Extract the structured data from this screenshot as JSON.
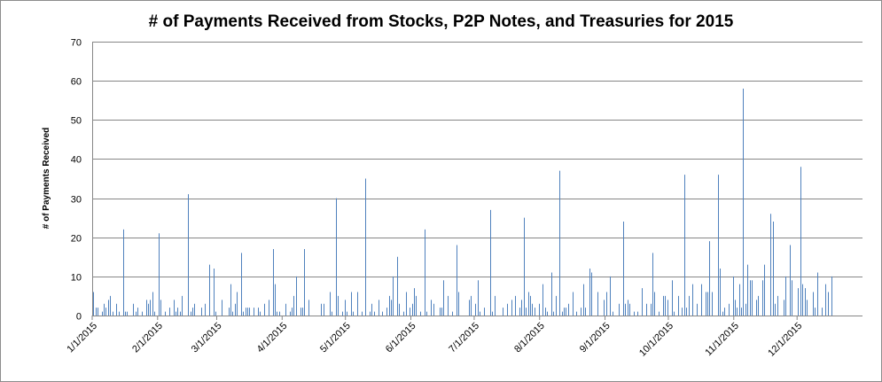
{
  "chart_data": {
    "type": "bar",
    "title": "# of Payments Received from Stocks, P2P Notes, and Treasuries for 2015",
    "xlabel": "",
    "ylabel": "# of Payments Received",
    "ylim": [
      0,
      70
    ],
    "yticks": [
      0,
      10,
      20,
      30,
      40,
      50,
      60,
      70
    ],
    "xlim": [
      "2015-01-01",
      "2015-12-31"
    ],
    "xticks": [
      "1/1/2015",
      "2/1/2015",
      "3/1/2015",
      "4/1/2015",
      "5/1/2015",
      "6/1/2015",
      "7/1/2015",
      "8/1/2015",
      "9/1/2015",
      "10/1/2015",
      "11/1/2015",
      "12/1/2015"
    ],
    "grid": true,
    "bar_color": "#4f81bd",
    "points": [
      [
        "2015-01-01",
        6
      ],
      [
        "2015-01-02",
        2
      ],
      [
        "2015-01-03",
        2
      ],
      [
        "2015-01-05",
        1
      ],
      [
        "2015-01-06",
        3
      ],
      [
        "2015-01-07",
        2
      ],
      [
        "2015-01-08",
        4
      ],
      [
        "2015-01-09",
        5
      ],
      [
        "2015-01-10",
        1
      ],
      [
        "2015-01-12",
        3
      ],
      [
        "2015-01-13",
        1
      ],
      [
        "2015-01-15",
        22
      ],
      [
        "2015-01-16",
        1
      ],
      [
        "2015-01-17",
        1
      ],
      [
        "2015-01-20",
        3
      ],
      [
        "2015-01-21",
        1
      ],
      [
        "2015-01-22",
        2
      ],
      [
        "2015-01-24",
        1
      ],
      [
        "2015-01-26",
        4
      ],
      [
        "2015-01-27",
        3
      ],
      [
        "2015-01-28",
        4
      ],
      [
        "2015-01-29",
        6
      ],
      [
        "2015-01-30",
        1
      ],
      [
        "2015-02-01",
        21
      ],
      [
        "2015-02-02",
        4
      ],
      [
        "2015-02-04",
        1
      ],
      [
        "2015-02-06",
        2
      ],
      [
        "2015-02-08",
        4
      ],
      [
        "2015-02-09",
        1
      ],
      [
        "2015-02-10",
        2
      ],
      [
        "2015-02-11",
        1
      ],
      [
        "2015-02-12",
        5
      ],
      [
        "2015-02-15",
        31
      ],
      [
        "2015-02-16",
        1
      ],
      [
        "2015-02-17",
        2
      ],
      [
        "2015-02-18",
        3
      ],
      [
        "2015-02-21",
        2
      ],
      [
        "2015-02-23",
        3
      ],
      [
        "2015-02-25",
        13
      ],
      [
        "2015-02-27",
        12
      ],
      [
        "2015-02-28",
        1
      ],
      [
        "2015-03-03",
        4
      ],
      [
        "2015-03-06",
        2
      ],
      [
        "2015-03-07",
        8
      ],
      [
        "2015-03-08",
        1
      ],
      [
        "2015-03-09",
        3
      ],
      [
        "2015-03-10",
        6
      ],
      [
        "2015-03-12",
        16
      ],
      [
        "2015-03-13",
        1
      ],
      [
        "2015-03-14",
        2
      ],
      [
        "2015-03-15",
        2
      ],
      [
        "2015-03-16",
        2
      ],
      [
        "2015-03-18",
        2
      ],
      [
        "2015-03-20",
        2
      ],
      [
        "2015-03-21",
        1
      ],
      [
        "2015-03-23",
        3
      ],
      [
        "2015-03-25",
        4
      ],
      [
        "2015-03-27",
        17
      ],
      [
        "2015-03-28",
        8
      ],
      [
        "2015-03-29",
        1
      ],
      [
        "2015-03-30",
        1
      ],
      [
        "2015-04-02",
        3
      ],
      [
        "2015-04-04",
        1
      ],
      [
        "2015-04-05",
        2
      ],
      [
        "2015-04-06",
        5
      ],
      [
        "2015-04-07",
        10
      ],
      [
        "2015-04-09",
        2
      ],
      [
        "2015-04-10",
        2
      ],
      [
        "2015-04-11",
        17
      ],
      [
        "2015-04-13",
        4
      ],
      [
        "2015-04-19",
        3
      ],
      [
        "2015-04-20",
        3
      ],
      [
        "2015-04-23",
        6
      ],
      [
        "2015-04-24",
        1
      ],
      [
        "2015-04-26",
        30
      ],
      [
        "2015-04-27",
        5
      ],
      [
        "2015-04-29",
        1
      ],
      [
        "2015-04-30",
        4
      ],
      [
        "2015-05-01",
        1
      ],
      [
        "2015-05-03",
        6
      ],
      [
        "2015-05-04",
        1
      ],
      [
        "2015-05-06",
        6
      ],
      [
        "2015-05-08",
        1
      ],
      [
        "2015-05-10",
        35
      ],
      [
        "2015-05-12",
        1
      ],
      [
        "2015-05-13",
        3
      ],
      [
        "2015-05-14",
        1
      ],
      [
        "2015-05-16",
        4
      ],
      [
        "2015-05-18",
        1
      ],
      [
        "2015-05-20",
        2
      ],
      [
        "2015-05-21",
        5
      ],
      [
        "2015-05-22",
        4
      ],
      [
        "2015-05-23",
        10
      ],
      [
        "2015-05-25",
        15
      ],
      [
        "2015-05-26",
        3
      ],
      [
        "2015-05-28",
        1
      ],
      [
        "2015-05-29",
        6
      ],
      [
        "2015-05-31",
        2
      ],
      [
        "2015-06-01",
        3
      ],
      [
        "2015-06-02",
        7
      ],
      [
        "2015-06-03",
        5
      ],
      [
        "2015-06-05",
        1
      ],
      [
        "2015-06-07",
        22
      ],
      [
        "2015-06-08",
        1
      ],
      [
        "2015-06-10",
        4
      ],
      [
        "2015-06-11",
        3
      ],
      [
        "2015-06-14",
        2
      ],
      [
        "2015-06-15",
        2
      ],
      [
        "2015-06-16",
        9
      ],
      [
        "2015-06-18",
        5
      ],
      [
        "2015-06-20",
        1
      ],
      [
        "2015-06-22",
        18
      ],
      [
        "2015-06-23",
        6
      ],
      [
        "2015-06-28",
        4
      ],
      [
        "2015-06-29",
        5
      ],
      [
        "2015-07-01",
        3
      ],
      [
        "2015-07-02",
        9
      ],
      [
        "2015-07-03",
        1
      ],
      [
        "2015-07-05",
        2
      ],
      [
        "2015-07-08",
        27
      ],
      [
        "2015-07-09",
        1
      ],
      [
        "2015-07-10",
        5
      ],
      [
        "2015-07-14",
        2
      ],
      [
        "2015-07-16",
        3
      ],
      [
        "2015-07-18",
        4
      ],
      [
        "2015-07-20",
        5
      ],
      [
        "2015-07-22",
        2
      ],
      [
        "2015-07-23",
        4
      ],
      [
        "2015-07-24",
        25
      ],
      [
        "2015-07-25",
        2
      ],
      [
        "2015-07-26",
        6
      ],
      [
        "2015-07-27",
        5
      ],
      [
        "2015-07-28",
        3
      ],
      [
        "2015-07-29",
        2
      ],
      [
        "2015-07-31",
        3
      ],
      [
        "2015-08-02",
        8
      ],
      [
        "2015-08-03",
        2
      ],
      [
        "2015-08-04",
        1
      ],
      [
        "2015-08-06",
        11
      ],
      [
        "2015-08-07",
        1
      ],
      [
        "2015-08-08",
        5
      ],
      [
        "2015-08-10",
        37
      ],
      [
        "2015-08-11",
        1
      ],
      [
        "2015-08-12",
        2
      ],
      [
        "2015-08-13",
        2
      ],
      [
        "2015-08-14",
        3
      ],
      [
        "2015-08-16",
        6
      ],
      [
        "2015-08-18",
        1
      ],
      [
        "2015-08-20",
        2
      ],
      [
        "2015-08-21",
        8
      ],
      [
        "2015-08-22",
        2
      ],
      [
        "2015-08-24",
        12
      ],
      [
        "2015-08-25",
        11
      ],
      [
        "2015-08-28",
        6
      ],
      [
        "2015-08-31",
        4
      ],
      [
        "2015-09-01",
        6
      ],
      [
        "2015-09-03",
        10
      ],
      [
        "2015-09-04",
        1
      ],
      [
        "2015-09-07",
        3
      ],
      [
        "2015-09-09",
        24
      ],
      [
        "2015-09-10",
        3
      ],
      [
        "2015-09-11",
        4
      ],
      [
        "2015-09-12",
        3
      ],
      [
        "2015-09-14",
        1
      ],
      [
        "2015-09-16",
        1
      ],
      [
        "2015-09-18",
        7
      ],
      [
        "2015-09-20",
        3
      ],
      [
        "2015-09-22",
        3
      ],
      [
        "2015-09-23",
        16
      ],
      [
        "2015-09-24",
        6
      ],
      [
        "2015-09-26",
        1
      ],
      [
        "2015-09-28",
        5
      ],
      [
        "2015-09-29",
        5
      ],
      [
        "2015-09-30",
        4
      ],
      [
        "2015-10-02",
        9
      ],
      [
        "2015-10-03",
        1
      ],
      [
        "2015-10-05",
        5
      ],
      [
        "2015-10-07",
        2
      ],
      [
        "2015-10-08",
        36
      ],
      [
        "2015-10-09",
        2
      ],
      [
        "2015-10-10",
        5
      ],
      [
        "2015-10-12",
        8
      ],
      [
        "2015-10-14",
        3
      ],
      [
        "2015-10-16",
        8
      ],
      [
        "2015-10-18",
        6
      ],
      [
        "2015-10-19",
        6
      ],
      [
        "2015-10-20",
        19
      ],
      [
        "2015-10-21",
        6
      ],
      [
        "2015-10-24",
        36
      ],
      [
        "2015-10-25",
        12
      ],
      [
        "2015-10-26",
        1
      ],
      [
        "2015-10-27",
        2
      ],
      [
        "2015-10-29",
        3
      ],
      [
        "2015-10-31",
        10
      ],
      [
        "2015-11-01",
        4
      ],
      [
        "2015-11-02",
        2
      ],
      [
        "2015-11-03",
        8
      ],
      [
        "2015-11-04",
        2
      ],
      [
        "2015-11-05",
        58
      ],
      [
        "2015-11-06",
        3
      ],
      [
        "2015-11-07",
        13
      ],
      [
        "2015-11-08",
        9
      ],
      [
        "2015-11-09",
        9
      ],
      [
        "2015-11-11",
        4
      ],
      [
        "2015-11-12",
        5
      ],
      [
        "2015-11-14",
        9
      ],
      [
        "2015-11-15",
        13
      ],
      [
        "2015-11-18",
        26
      ],
      [
        "2015-11-19",
        24
      ],
      [
        "2015-11-20",
        3
      ],
      [
        "2015-11-21",
        5
      ],
      [
        "2015-11-24",
        4
      ],
      [
        "2015-11-25",
        10
      ],
      [
        "2015-11-27",
        18
      ],
      [
        "2015-11-28",
        9
      ],
      [
        "2015-12-01",
        7
      ],
      [
        "2015-12-02",
        38
      ],
      [
        "2015-12-03",
        8
      ],
      [
        "2015-12-04",
        7
      ],
      [
        "2015-12-05",
        4
      ],
      [
        "2015-12-08",
        6
      ],
      [
        "2015-12-09",
        2
      ],
      [
        "2015-12-10",
        11
      ],
      [
        "2015-12-12",
        2
      ],
      [
        "2015-12-14",
        8
      ],
      [
        "2015-12-15",
        6
      ],
      [
        "2015-12-17",
        10
      ]
    ]
  }
}
